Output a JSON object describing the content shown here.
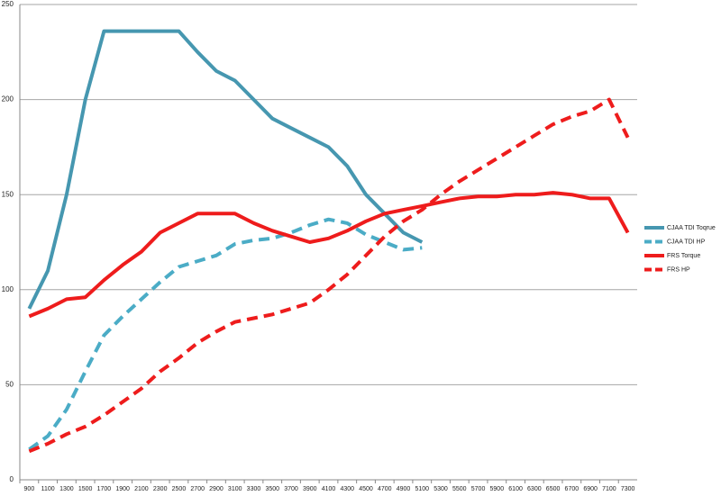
{
  "chart_data": {
    "type": "line",
    "categories": [
      "900",
      "1100",
      "1300",
      "1500",
      "1700",
      "1900",
      "2100",
      "2300",
      "2500",
      "2700",
      "2900",
      "3100",
      "3300",
      "3500",
      "3700",
      "3900",
      "4100",
      "4300",
      "4500",
      "4700",
      "4900",
      "5100",
      "5300",
      "5500",
      "5700",
      "5900",
      "6100",
      "6300",
      "6500",
      "6700",
      "6900",
      "7100",
      "7300"
    ],
    "series": [
      {
        "name": "CJAA TDI Toqrue",
        "color": "#4697b0",
        "dashed": false,
        "values": [
          90,
          110,
          150,
          200,
          236,
          236,
          236,
          236,
          236,
          225,
          215,
          210,
          200,
          190,
          185,
          180,
          175,
          165,
          150,
          140,
          130,
          125,
          null,
          null,
          null,
          null,
          null,
          null,
          null,
          null,
          null,
          null,
          null
        ]
      },
      {
        "name": "CJAA TDI HP",
        "color": "#4bacc6",
        "dashed": true,
        "values": [
          16,
          23,
          37,
          57,
          76,
          86,
          95,
          104,
          112,
          115,
          118,
          124,
          126,
          127,
          130,
          134,
          137,
          135,
          129,
          125,
          121,
          122,
          null,
          null,
          null,
          null,
          null,
          null,
          null,
          null,
          null,
          null,
          null
        ]
      },
      {
        "name": "FRS Torque",
        "color": "#ee1c1c",
        "dashed": false,
        "values": [
          86,
          90,
          95,
          96,
          105,
          113,
          120,
          130,
          135,
          140,
          140,
          140,
          135,
          131,
          128,
          125,
          127,
          131,
          136,
          140,
          142,
          144,
          146,
          148,
          149,
          149,
          150,
          150,
          151,
          150,
          148,
          148,
          130
        ]
      },
      {
        "name": "FRS HP",
        "color": "#ee1c1c",
        "dashed": true,
        "values": [
          15,
          19,
          24,
          28,
          34,
          41,
          48,
          57,
          64,
          72,
          78,
          83,
          85,
          87,
          90,
          93,
          100,
          108,
          118,
          128,
          136,
          142,
          150,
          157,
          163,
          169,
          175,
          181,
          187,
          191,
          194,
          200,
          180
        ]
      }
    ],
    "ylim": [
      0,
      250
    ],
    "yticks": [
      0,
      50,
      100,
      150,
      200,
      250
    ],
    "grid": true,
    "legend": "right"
  }
}
